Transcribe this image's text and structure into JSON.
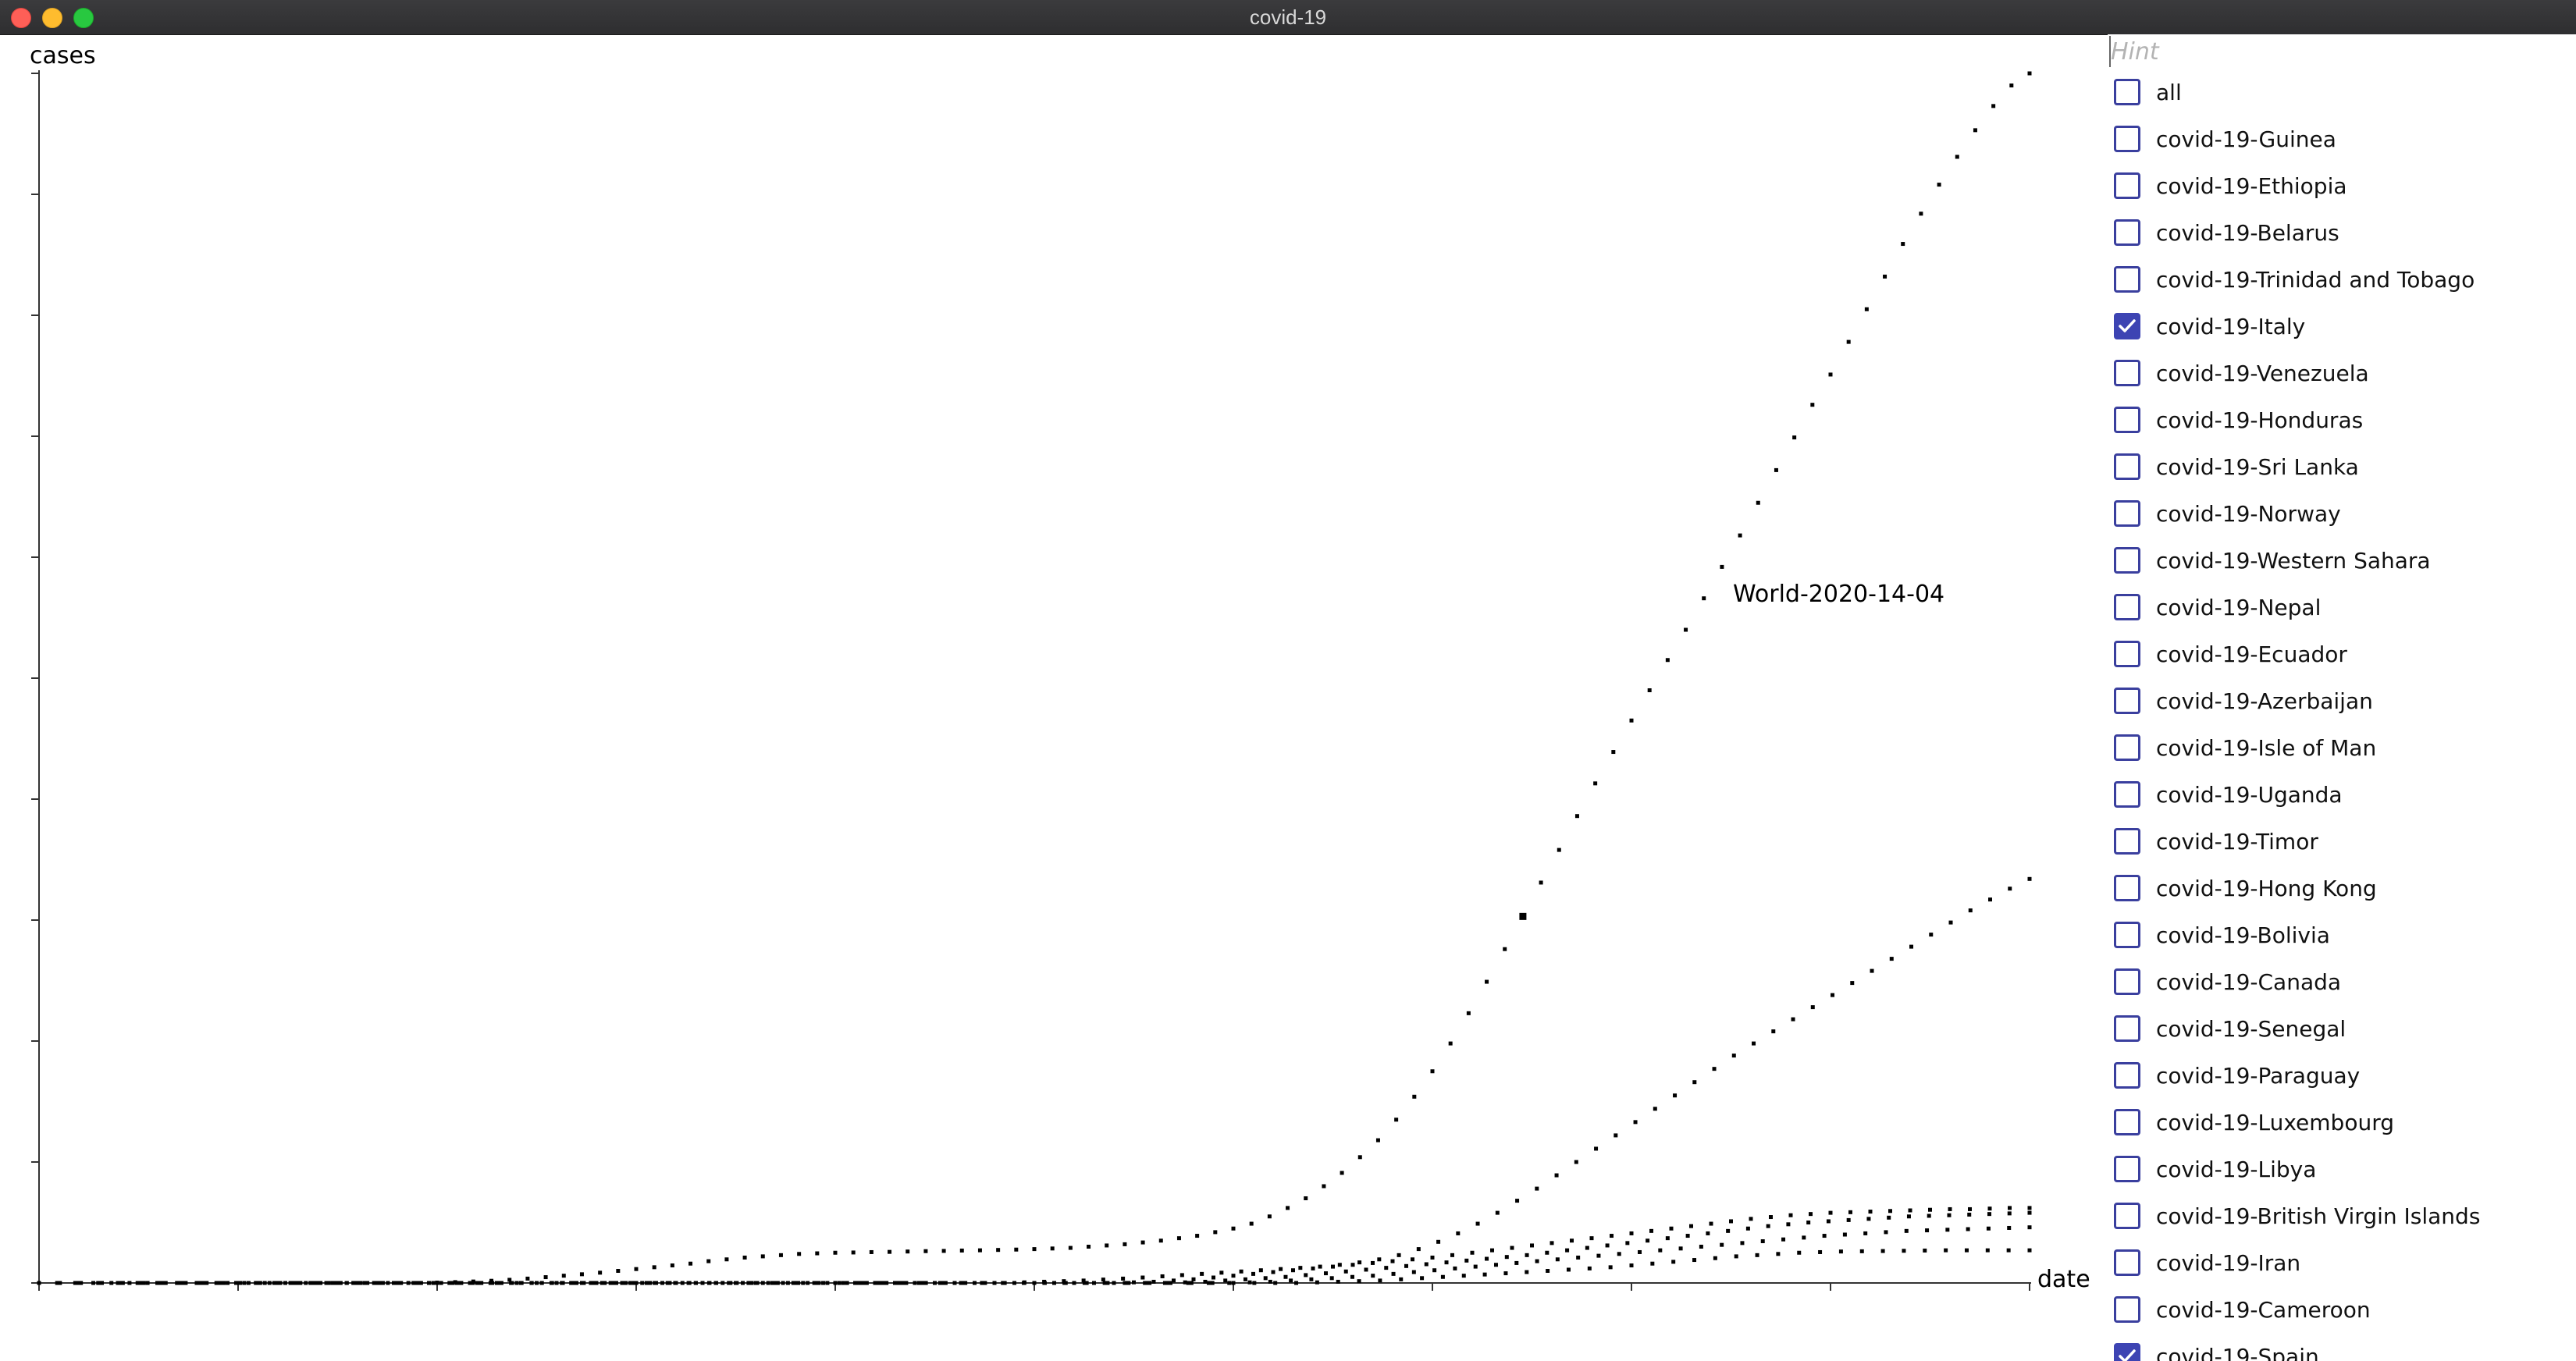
{
  "window": {
    "title": "covid-19"
  },
  "chart": {
    "ylabel": "cases",
    "xlabel": "date",
    "tooltip": "World-2020-14-04"
  },
  "sidebar": {
    "hint_placeholder": "Hint",
    "items": [
      {
        "label": "all",
        "checked": false
      },
      {
        "label": "covid-19-Guinea",
        "checked": false
      },
      {
        "label": "covid-19-Ethiopia",
        "checked": false
      },
      {
        "label": "covid-19-Belarus",
        "checked": false
      },
      {
        "label": "covid-19-Trinidad and Tobago",
        "checked": false
      },
      {
        "label": "covid-19-Italy",
        "checked": true
      },
      {
        "label": "covid-19-Venezuela",
        "checked": false
      },
      {
        "label": "covid-19-Honduras",
        "checked": false
      },
      {
        "label": "covid-19-Sri Lanka",
        "checked": false
      },
      {
        "label": "covid-19-Norway",
        "checked": false
      },
      {
        "label": "covid-19-Western Sahara",
        "checked": false
      },
      {
        "label": "covid-19-Nepal",
        "checked": false
      },
      {
        "label": "covid-19-Ecuador",
        "checked": false
      },
      {
        "label": "covid-19-Azerbaijan",
        "checked": false
      },
      {
        "label": "covid-19-Isle of Man",
        "checked": false
      },
      {
        "label": "covid-19-Uganda",
        "checked": false
      },
      {
        "label": "covid-19-Timor",
        "checked": false
      },
      {
        "label": "covid-19-Hong Kong",
        "checked": false
      },
      {
        "label": "covid-19-Bolivia",
        "checked": false
      },
      {
        "label": "covid-19-Canada",
        "checked": false
      },
      {
        "label": "covid-19-Senegal",
        "checked": false
      },
      {
        "label": "covid-19-Paraguay",
        "checked": false
      },
      {
        "label": "covid-19-Luxembourg",
        "checked": false
      },
      {
        "label": "covid-19-Libya",
        "checked": false
      },
      {
        "label": "covid-19-British Virgin Islands",
        "checked": false
      },
      {
        "label": "covid-19-Iran",
        "checked": false
      },
      {
        "label": "covid-19-Cameroon",
        "checked": false
      },
      {
        "label": "covid-19-Spain",
        "checked": true
      }
    ]
  },
  "colors": {
    "accent": "#3d44b3",
    "points": "#000000"
  },
  "chart_data": {
    "type": "scatter",
    "x_unit": "day index",
    "x_range": [
      0,
      100
    ],
    "y_range": [
      0,
      100
    ],
    "grid": false,
    "series": [
      {
        "values": [
          0,
          0,
          0,
          0,
          0,
          0,
          0,
          0,
          0,
          0,
          0,
          0,
          0,
          0,
          0,
          0,
          0,
          0,
          0,
          0,
          0,
          0,
          0.03,
          0.07,
          0.12,
          0.18,
          0.26,
          0.36,
          0.48,
          0.6,
          0.72,
          0.85,
          1.0,
          1.15,
          1.3,
          1.45,
          1.6,
          1.8,
          1.95,
          2.1,
          2.2,
          2.3,
          2.4,
          2.45,
          2.5,
          2.52,
          2.55,
          2.57,
          2.6,
          2.63,
          2.65,
          2.68,
          2.7,
          2.73,
          2.76,
          2.8,
          2.85,
          2.9,
          3.0,
          3.1,
          3.2,
          3.35,
          3.5,
          3.7,
          3.9,
          4.2,
          4.5,
          4.9,
          5.5,
          6.2,
          7.0,
          8.0,
          9.1,
          10.4,
          11.8,
          13.5,
          15.4,
          17.5,
          19.8,
          22.3,
          24.9,
          27.6,
          30.3,
          33.1,
          35.8,
          38.6,
          41.3,
          43.9,
          46.5,
          49.0,
          51.5,
          54.0,
          56.6,
          59.2,
          61.8,
          64.5,
          67.2,
          69.9,
          72.6,
          75.1,
          77.8,
          80.5,
          83.2,
          85.9,
          88.4,
          90.8,
          93.1,
          95.3,
          97.3,
          99.0,
          100
        ]
      },
      {
        "values": [
          0,
          0,
          0,
          0,
          0,
          0,
          0,
          0,
          0,
          0,
          0,
          0,
          0,
          0,
          0,
          0,
          0,
          0,
          0,
          0,
          0,
          0,
          0,
          0,
          0,
          0,
          0,
          0,
          0,
          0,
          0,
          0,
          0,
          0,
          0,
          0,
          0,
          0,
          0,
          0,
          0,
          0,
          0,
          0,
          0,
          0,
          0,
          0,
          0,
          0,
          0.05,
          0.1,
          0.15,
          0.2,
          0.28,
          0.36,
          0.45,
          0.55,
          0.65,
          0.75,
          0.85,
          0.95,
          1.05,
          1.15,
          1.25,
          1.35,
          1.5,
          1.7,
          1.95,
          2.3,
          2.8,
          3.4,
          4.1,
          4.9,
          5.8,
          6.8,
          7.8,
          8.9,
          10.0,
          11.1,
          12.2,
          13.3,
          14.4,
          15.5,
          16.6,
          17.7,
          18.8,
          19.8,
          20.8,
          21.8,
          22.8,
          23.8,
          24.8,
          25.8,
          26.8,
          27.8,
          28.8,
          29.8,
          30.8,
          31.7,
          32.6,
          33.4
        ]
      },
      {
        "values": [
          0,
          0,
          0,
          0,
          0,
          0,
          0,
          0,
          0,
          0,
          0,
          0,
          0,
          0,
          0,
          0,
          0,
          0,
          0,
          0,
          0,
          0,
          0,
          0,
          0,
          0,
          0,
          0,
          0,
          0,
          0,
          0,
          0,
          0,
          0,
          0,
          0,
          0,
          0,
          0,
          0,
          0,
          0,
          0,
          0,
          0,
          0,
          0,
          0,
          0,
          0,
          0,
          0,
          0,
          0,
          0.05,
          0.1,
          0.2,
          0.3,
          0.45,
          0.6,
          0.75,
          0.9,
          1.05,
          1.2,
          1.35,
          1.5,
          1.65,
          1.8,
          1.95,
          2.1,
          2.3,
          2.5,
          2.7,
          2.9,
          3.1,
          3.3,
          3.5,
          3.7,
          3.9,
          4.1,
          4.3,
          4.5,
          4.7,
          4.9,
          5.1,
          5.3,
          5.45,
          5.6,
          5.7,
          5.8,
          5.85,
          5.9,
          5.95,
          6.0,
          6.05,
          6.1,
          6.1,
          6.15,
          6.2,
          6.2
        ]
      },
      {
        "values": [
          0,
          0,
          0,
          0,
          0,
          0,
          0,
          0,
          0,
          0,
          0,
          0,
          0,
          0,
          0,
          0,
          0,
          0,
          0,
          0,
          0,
          0,
          0,
          0,
          0,
          0,
          0,
          0,
          0,
          0,
          0,
          0,
          0,
          0,
          0,
          0,
          0,
          0,
          0,
          0,
          0,
          0,
          0,
          0,
          0,
          0,
          0,
          0,
          0,
          0,
          0,
          0,
          0,
          0,
          0,
          0,
          0,
          0.05,
          0.1,
          0.2,
          0.3,
          0.4,
          0.5,
          0.65,
          0.8,
          0.95,
          1.1,
          1.25,
          1.4,
          1.55,
          1.7,
          1.85,
          2.0,
          2.15,
          2.3,
          2.5,
          2.7,
          2.9,
          3.1,
          3.3,
          3.5,
          3.7,
          3.9,
          4.1,
          4.3,
          4.5,
          4.7,
          4.85,
          5.0,
          5.1,
          5.2,
          5.3,
          5.4,
          5.5,
          5.55,
          5.6,
          5.65,
          5.7,
          5.75,
          5.8
        ]
      },
      {
        "values": [
          0,
          0,
          0,
          0,
          0,
          0,
          0,
          0,
          0,
          0,
          0,
          0,
          0,
          0,
          0,
          0,
          0,
          0,
          0,
          0,
          0,
          0,
          0,
          0,
          0,
          0,
          0,
          0,
          0,
          0,
          0,
          0,
          0,
          0,
          0,
          0,
          0,
          0,
          0,
          0,
          0,
          0,
          0,
          0,
          0,
          0,
          0,
          0,
          0,
          0,
          0,
          0,
          0,
          0,
          0,
          0,
          0,
          0,
          0,
          0.05,
          0.1,
          0.2,
          0.3,
          0.4,
          0.5,
          0.6,
          0.75,
          0.9,
          1.05,
          1.2,
          1.35,
          1.5,
          1.65,
          1.8,
          1.95,
          2.1,
          2.25,
          2.4,
          2.55,
          2.7,
          2.85,
          3.0,
          3.15,
          3.3,
          3.45,
          3.6,
          3.75,
          3.9,
          4.0,
          4.1,
          4.2,
          4.3,
          4.35,
          4.4,
          4.45,
          4.5,
          4.55,
          4.6
        ]
      },
      {
        "values": [
          0,
          0,
          0,
          0,
          0,
          0,
          0,
          0,
          0,
          0,
          0,
          0,
          0,
          0,
          0,
          0,
          0,
          0,
          0,
          0,
          0,
          0,
          0,
          0,
          0,
          0,
          0,
          0,
          0,
          0,
          0,
          0,
          0,
          0,
          0,
          0,
          0,
          0,
          0,
          0,
          0,
          0,
          0,
          0,
          0,
          0,
          0,
          0,
          0,
          0,
          0,
          0,
          0,
          0,
          0,
          0,
          0,
          0,
          0,
          0,
          0,
          0.05,
          0.1,
          0.15,
          0.2,
          0.3,
          0.4,
          0.5,
          0.6,
          0.7,
          0.8,
          0.9,
          1.0,
          1.1,
          1.2,
          1.3,
          1.45,
          1.6,
          1.75,
          1.9,
          2.05,
          2.2,
          2.3,
          2.4,
          2.5,
          2.55,
          2.6,
          2.62,
          2.64,
          2.66,
          2.68,
          2.7,
          2.7,
          2.7,
          2.7,
          2.7
        ]
      }
    ],
    "highlight": {
      "series": 0,
      "index": 82
    }
  }
}
